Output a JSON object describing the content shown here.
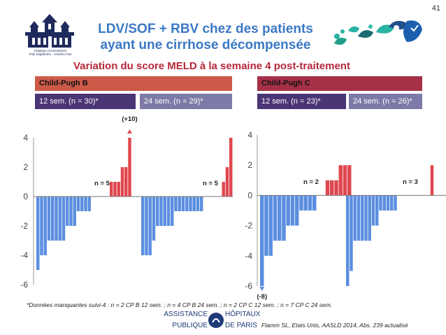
{
  "slide_number": "41",
  "title_line1": "LDV/SOF + RBV chez des patients",
  "title_line2": "ayant une cirrhose décompensée",
  "subtitle": "Variation du score MELD à la semaine 4 post-traitement",
  "hospital_logo": {
    "line1": "Hôpitaux Universitaires",
    "line2": "Pitié Salpêtrière - Charles Foix"
  },
  "headers": {
    "child_pugh_b": "Child-Pugh B",
    "child_pugh_c": "Child-Pugh C",
    "b_12": "12 sem. (n = 30)*",
    "b_24": "24 sem. (n = 29)*",
    "c_12": "12 sem. (n = 23)*",
    "c_24": "24 sem. (n = 26)*"
  },
  "colors": {
    "negative": "#5b8ee0",
    "positive": "#e0474f",
    "title": "#3b78c5",
    "subtitle": "#b6283a"
  },
  "chart_data": [
    {
      "type": "bar",
      "title": "Child-Pugh B",
      "ylim": [
        -6,
        4
      ],
      "yticks": [
        -6,
        -4,
        -2,
        0,
        2,
        4
      ],
      "groups": [
        {
          "name": "12 sem. (n = 30)*",
          "values": [
            -5,
            -4,
            -4,
            -3,
            -3,
            -3,
            -3,
            -3,
            -2,
            -2,
            -2,
            -1,
            -1,
            -1,
            -1,
            0,
            0,
            0,
            0,
            0,
            1,
            1,
            1,
            2,
            2,
            4
          ],
          "count_label": "n = 5"
        },
        {
          "name": "24 sem. (n = 29)*",
          "values": [
            -4,
            -4,
            -4,
            -3,
            -2,
            -2,
            -2,
            -2,
            -2,
            -1,
            -1,
            -1,
            -1,
            -1,
            -1,
            -1,
            -1,
            0,
            0,
            0,
            0,
            0,
            1,
            2,
            4
          ],
          "count_label": "n = 5"
        }
      ],
      "annotation": "(+10)"
    },
    {
      "type": "bar",
      "title": "Child-Pugh C",
      "ylim": [
        -6,
        4
      ],
      "yticks": [
        -6,
        -4,
        -2,
        0,
        2,
        4
      ],
      "groups": [
        {
          "name": "12 sem. (n = 23)*",
          "values": [
            -6,
            -4,
            -4,
            -3,
            -3,
            -3,
            -2,
            -2,
            -2,
            -1,
            -1,
            -1,
            -1,
            0,
            0,
            1,
            1,
            1,
            2,
            2,
            2
          ],
          "count_label": "n = 2"
        },
        {
          "name": "24 sem. (n = 26)*",
          "values": [
            -6,
            -5,
            -3,
            -3,
            -3,
            -3,
            -3,
            -2,
            -2,
            -1,
            -1,
            -1,
            -1,
            -1,
            0,
            0,
            0,
            0,
            0,
            0,
            0,
            0,
            0,
            2
          ],
          "count_label": "n = 3"
        }
      ],
      "annotation": "(-8)"
    }
  ],
  "footnote": "*Données manquantes suivi-4 : n = 2 CP B 12 sem. ; n = 4 CP B 24 sem. ; n = 2 CP C 12 sem. ; n = 7 CP C 24 sem.",
  "aphp": {
    "line1": "ASSISTANCE",
    "line2": "PUBLIQUE",
    "line3": "HÔPITAUX",
    "line4": "DE PARIS"
  },
  "citation": "Flamm SL, Etats Unis, AASLD 2014, Abs. 239 actualisé"
}
